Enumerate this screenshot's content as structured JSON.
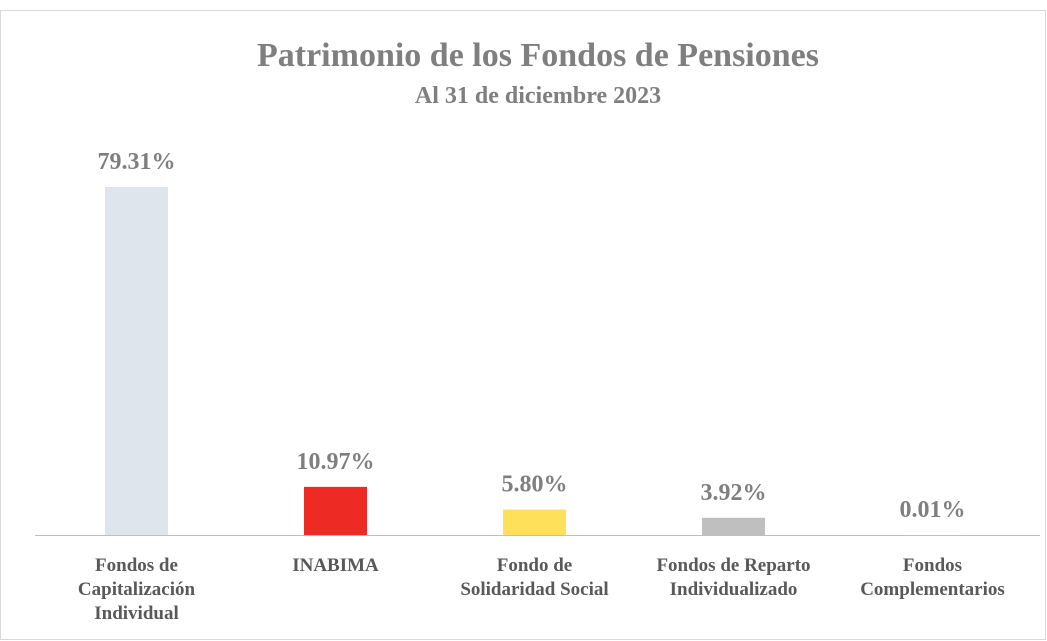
{
  "chart_data": {
    "type": "bar",
    "title": "Patrimonio de los Fondos de Pensiones",
    "subtitle": "Al 31 de diciembre 2023",
    "categories": [
      "Fondos de\nCapitalización\nIndividual",
      "INABIMA",
      "Fondo de\nSolidaridad Social",
      "Fondos de Reparto\nIndividualizado",
      "Fondos\nComplementarios"
    ],
    "values": [
      79.31,
      10.97,
      5.8,
      3.92,
      0.01
    ],
    "value_labels": [
      "79.31%",
      "10.97%",
      "5.80%",
      "3.92%",
      "0.01%"
    ],
    "colors": [
      "#dee5ed",
      "#ee2a24",
      "#ffe05a",
      "#bfbfbf",
      "#a5a5a5"
    ]
  }
}
